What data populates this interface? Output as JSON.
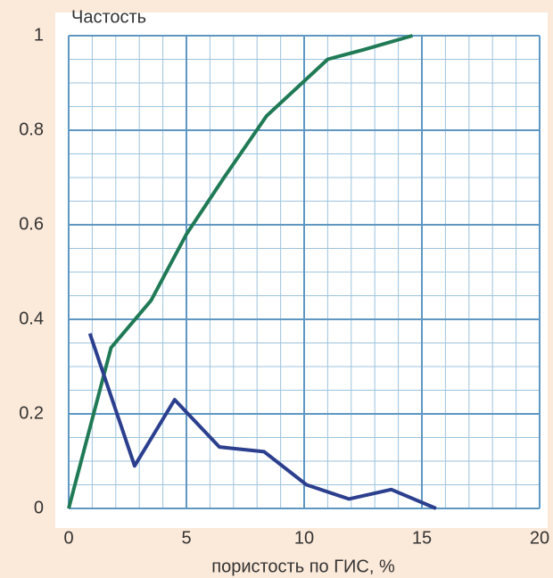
{
  "chart_data": {
    "type": "line",
    "ylabel": "Частость",
    "xlabel": "пористость по ГИС, %",
    "series": [
      {
        "color": "#1f7a55",
        "x": [
          0,
          1.8,
          3.5,
          5,
          6.6,
          8.4,
          11,
          12.5,
          14.6
        ],
        "values": [
          0,
          0.34,
          0.44,
          0.58,
          0.7,
          0.83,
          0.95,
          0.97,
          1.0
        ]
      },
      {
        "color": "#2b3f8e",
        "x": [
          0.9,
          2.8,
          4.5,
          6.4,
          8.3,
          10.1,
          11.9,
          13.7,
          15.6
        ],
        "values": [
          0.37,
          0.09,
          0.23,
          0.13,
          0.12,
          0.05,
          0.02,
          0.04,
          0.0
        ]
      }
    ],
    "xlim": [
      0,
      20
    ],
    "xticks": [
      0,
      5,
      10,
      15,
      20
    ],
    "ylim": [
      0,
      1
    ],
    "yticks": [
      0,
      0.2,
      0.4,
      0.6,
      0.8,
      1
    ],
    "grid": true,
    "minor_grid": {
      "x": 1,
      "y": 0.05
    }
  }
}
